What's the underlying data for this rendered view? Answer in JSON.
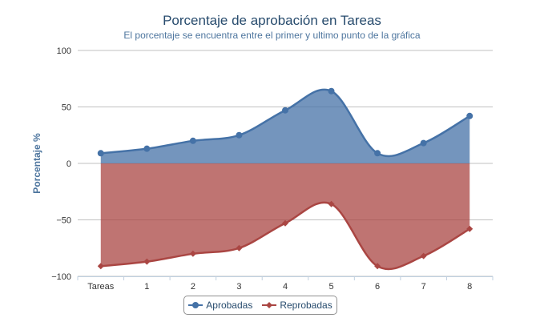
{
  "chart_data": {
    "type": "area",
    "title": "Porcentaje de aprobación en Tareas",
    "subtitle": "El porcentaje se encuentra entre el primer y ultimo punto de la gráfica",
    "xlabel": "",
    "ylabel": "Porcentaje %",
    "categories": [
      "Tareas",
      "1",
      "2",
      "3",
      "4",
      "5",
      "6",
      "7",
      "8"
    ],
    "ylim": [
      -100,
      100
    ],
    "yticks": [
      "100",
      "50",
      "0",
      "−50",
      "−100"
    ],
    "grid": true,
    "legend": "bottom-center",
    "series": [
      {
        "name": "Aprobadas",
        "color": "#4572a7",
        "marker": "circle",
        "values": [
          9,
          13,
          20,
          25,
          47,
          64,
          9,
          18,
          42
        ]
      },
      {
        "name": "Reprobadas",
        "color": "#aa4643",
        "marker": "diamond",
        "values": [
          -91,
          -87,
          -80,
          -75,
          -53,
          -36,
          -91,
          -82,
          -58
        ]
      }
    ]
  }
}
